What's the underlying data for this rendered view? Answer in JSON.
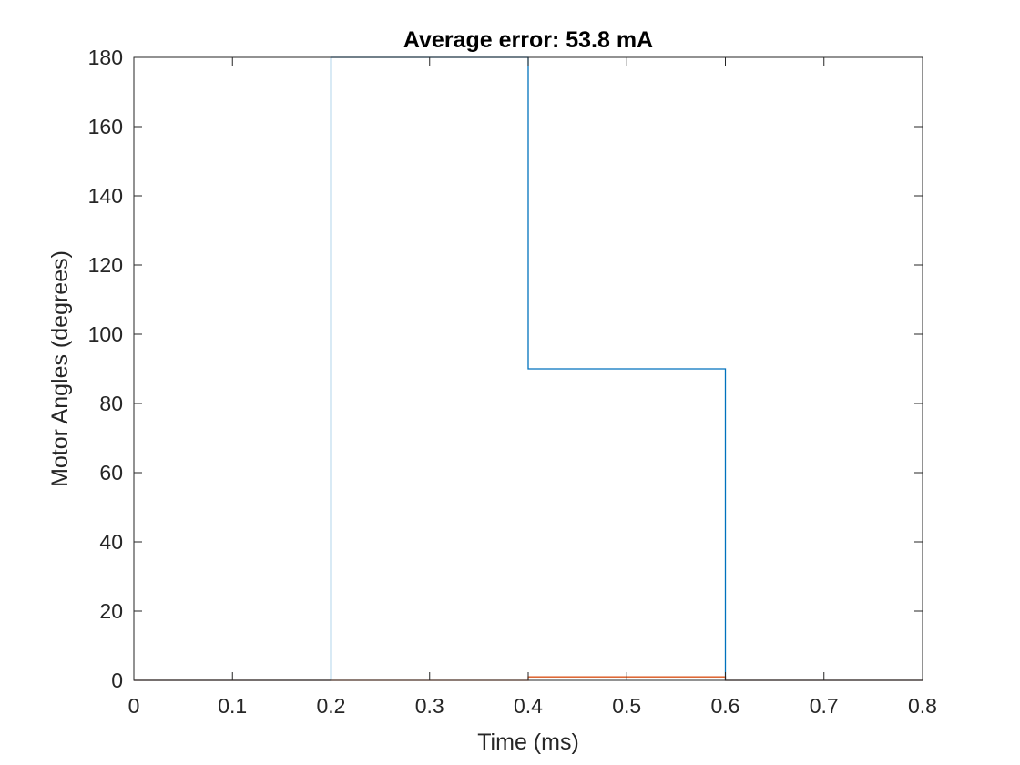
{
  "chart_data": {
    "type": "line",
    "title": "Average error:  53.8 mA",
    "xlabel": "Time (ms)",
    "ylabel": "Motor Angles (degrees)",
    "xlim": [
      0,
      0.8
    ],
    "ylim": [
      0,
      180
    ],
    "xticks": [
      0,
      0.1,
      0.2,
      0.3,
      0.4,
      0.5,
      0.6,
      0.7,
      0.8
    ],
    "yticks": [
      0,
      20,
      40,
      60,
      80,
      100,
      120,
      140,
      160,
      180
    ],
    "grid": false,
    "series": [
      {
        "color": "#0072BD",
        "x": [
          0,
          0.2,
          0.2,
          0.4,
          0.4,
          0.6,
          0.6,
          0.8
        ],
        "y": [
          0,
          0,
          180,
          180,
          90,
          90,
          0,
          0
        ]
      },
      {
        "color": "#D95319",
        "x": [
          0,
          0.4,
          0.4,
          0.6,
          0.6,
          0.8
        ],
        "y": [
          0,
          0,
          1,
          1,
          0,
          0
        ]
      }
    ]
  }
}
